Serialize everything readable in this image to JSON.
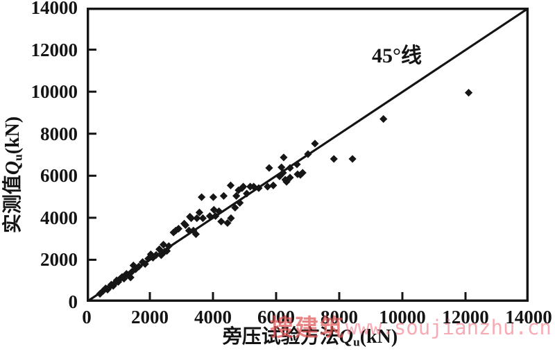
{
  "watermark": {
    "brand": "搜建筑",
    "url": "www.soujianzhu.cn"
  },
  "chart_data": {
    "type": "scatter",
    "title": "",
    "xlabel": {
      "text": "旁压试验方法",
      "var": "Q",
      "sub": "u",
      "unit": "(kN)"
    },
    "ylabel": {
      "text": "实测值",
      "var": "Q",
      "sub": "u",
      "unit": "(kN)"
    },
    "annotation": "45°线",
    "xlim": [
      0,
      14000
    ],
    "ylim": [
      0,
      14000
    ],
    "x_ticks": [
      0,
      2000,
      4000,
      6000,
      8000,
      10000,
      12000,
      14000
    ],
    "y_ticks": [
      0,
      2000,
      4000,
      6000,
      8000,
      10000,
      12000,
      14000
    ],
    "grid": false,
    "frame": "full-box",
    "reference_line": {
      "from": [
        0,
        0
      ],
      "to": [
        14000,
        14000
      ],
      "label": "45°线"
    },
    "marker": "diamond",
    "marker_color": "#161616",
    "axis_color": "#141414",
    "points": [
      [
        420,
        380
      ],
      [
        520,
        520
      ],
      [
        600,
        640
      ],
      [
        660,
        580
      ],
      [
        720,
        700
      ],
      [
        780,
        820
      ],
      [
        840,
        760
      ],
      [
        900,
        900
      ],
      [
        950,
        1020
      ],
      [
        1000,
        950
      ],
      [
        1060,
        1100
      ],
      [
        1120,
        1180
      ],
      [
        1180,
        1100
      ],
      [
        1260,
        1330
      ],
      [
        1320,
        1280
      ],
      [
        1390,
        1160
      ],
      [
        1430,
        1430
      ],
      [
        1480,
        1730
      ],
      [
        1550,
        1550
      ],
      [
        1650,
        1680
      ],
      [
        1770,
        1890
      ],
      [
        1850,
        1800
      ],
      [
        1950,
        2050
      ],
      [
        2030,
        2260
      ],
      [
        2100,
        2100
      ],
      [
        2200,
        2230
      ],
      [
        2300,
        2500
      ],
      [
        2360,
        2220
      ],
      [
        2430,
        2720
      ],
      [
        2470,
        2390
      ],
      [
        2540,
        2420
      ],
      [
        2600,
        2650
      ],
      [
        2750,
        3300
      ],
      [
        2820,
        3390
      ],
      [
        2910,
        3480
      ],
      [
        3090,
        3720
      ],
      [
        3130,
        3650
      ],
      [
        3240,
        3390
      ],
      [
        3270,
        4050
      ],
      [
        3310,
        3980
      ],
      [
        3380,
        3390
      ],
      [
        3460,
        3220
      ],
      [
        3490,
        3980
      ],
      [
        3570,
        4250
      ],
      [
        3640,
        4980
      ],
      [
        3680,
        3980
      ],
      [
        3900,
        4080
      ],
      [
        4010,
        4980
      ],
      [
        4030,
        4380
      ],
      [
        4080,
        4080
      ],
      [
        4190,
        4310
      ],
      [
        4260,
        3820
      ],
      [
        4340,
        5040
      ],
      [
        4460,
        3750
      ],
      [
        4570,
        3980
      ],
      [
        4560,
        5540
      ],
      [
        4700,
        4480
      ],
      [
        4740,
        5040
      ],
      [
        4810,
        5310
      ],
      [
        4850,
        4710
      ],
      [
        4920,
        5410
      ],
      [
        4960,
        5480
      ],
      [
        5070,
        5150
      ],
      [
        5180,
        5480
      ],
      [
        5290,
        5480
      ],
      [
        5450,
        5410
      ],
      [
        5730,
        5480
      ],
      [
        5780,
        6370
      ],
      [
        5910,
        5540
      ],
      [
        6110,
        5970
      ],
      [
        6170,
        6400
      ],
      [
        6220,
        6140
      ],
      [
        6240,
        6870
      ],
      [
        6290,
        5810
      ],
      [
        6330,
        5710
      ],
      [
        6440,
        6370
      ],
      [
        6440,
        5910
      ],
      [
        6660,
        6540
      ],
      [
        6680,
        6070
      ],
      [
        6770,
        6040
      ],
      [
        6840,
        6140
      ],
      [
        7010,
        7030
      ],
      [
        7230,
        7530
      ],
      [
        7830,
        6800
      ],
      [
        8420,
        6800
      ],
      [
        9400,
        8700
      ],
      [
        12100,
        9950
      ]
    ]
  }
}
